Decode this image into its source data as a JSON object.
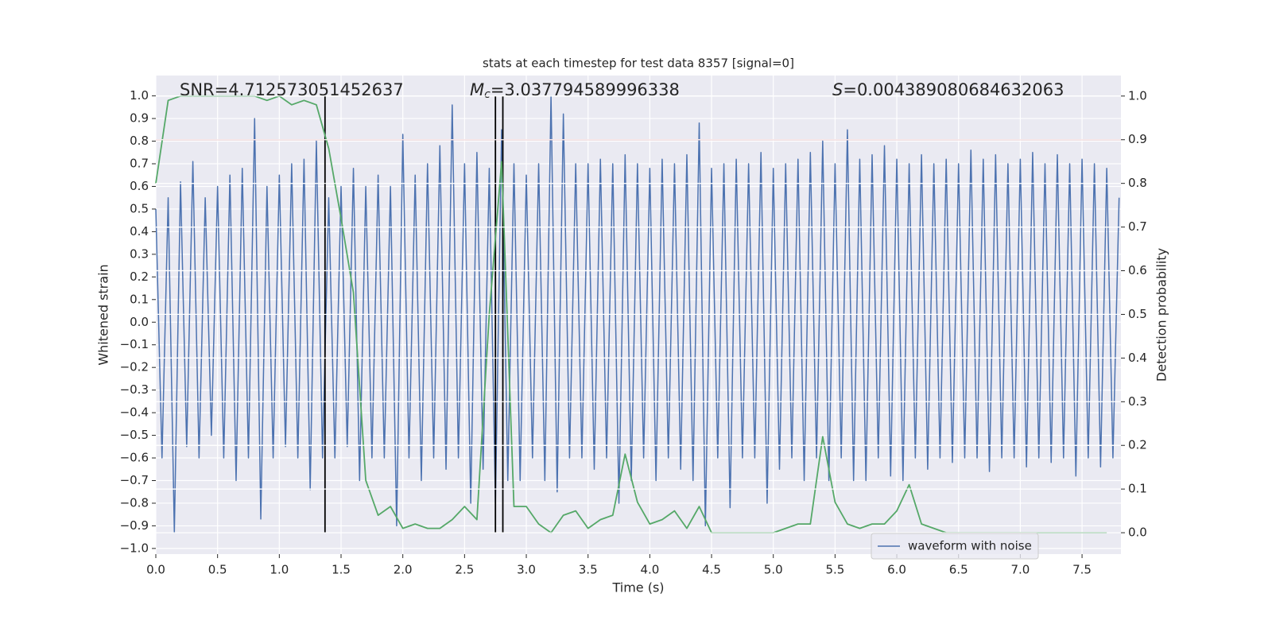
{
  "chart_data": {
    "type": "line",
    "title": "stats at each timestep for test data 8357 [signal=0]",
    "xlabel": "Time (s)",
    "ylabel": "Whitened strain",
    "y2label": "Detection probability",
    "annotations": {
      "snr": "SNR=4.712573051452637",
      "mc": {
        "symbol": "M",
        "subscript": "c",
        "text": "=3.037794589996338"
      },
      "s": {
        "symbol": "S",
        "text": "=0.004389080684632063"
      }
    },
    "xlim": [
      0,
      7.815
    ],
    "ylim": [
      -1.025,
      1.09
    ],
    "y2lim": [
      -0.049,
      1.047
    ],
    "xticks": [
      {
        "value": 0,
        "label": "0.0"
      },
      0.5,
      {
        "value": 1,
        "label": "1.0"
      },
      1.5,
      {
        "value": 2,
        "label": "2.0"
      },
      2.5,
      {
        "value": 3,
        "label": "3.0"
      },
      3.5,
      {
        "value": 4,
        "label": "4.0"
      },
      4.5,
      {
        "value": 5,
        "label": "5.0"
      },
      5.5,
      {
        "value": 6,
        "label": "6.0"
      },
      6.5,
      {
        "value": 7,
        "label": "7.0"
      },
      7.5
    ],
    "yticks": [
      {
        "value": -1,
        "label": "−1.0"
      },
      {
        "value": -0.9,
        "label": "−0.9"
      },
      {
        "value": -0.8,
        "label": "−0.8"
      },
      {
        "value": -0.7,
        "label": "−0.7"
      },
      {
        "value": -0.6,
        "label": "−0.6"
      },
      {
        "value": -0.5,
        "label": "−0.5"
      },
      {
        "value": -0.4,
        "label": "−0.4"
      },
      {
        "value": -0.3,
        "label": "−0.3"
      },
      {
        "value": -0.2,
        "label": "−0.2"
      },
      {
        "value": -0.1,
        "label": "−0.1"
      },
      {
        "value": 0,
        "label": "0.0"
      },
      0.1,
      0.2,
      0.3,
      0.4,
      0.5,
      0.6,
      0.7,
      0.8,
      0.9,
      {
        "value": 1,
        "label": "1.0"
      }
    ],
    "y2ticks": [
      {
        "value": 0,
        "label": "0.0"
      },
      0.1,
      0.2,
      0.3,
      0.4,
      0.5,
      0.6,
      0.7,
      0.8,
      0.9,
      {
        "value": 1,
        "label": "1.0"
      }
    ],
    "grid": true,
    "legend": "lower right",
    "x": [
      0,
      0.05,
      0.1,
      0.15,
      0.2,
      0.25,
      0.3,
      0.35,
      0.4,
      0.45,
      0.5,
      0.55,
      0.6,
      0.65,
      0.7,
      0.75,
      0.8,
      0.85,
      0.9,
      0.95,
      1,
      1.05,
      1.1,
      1.15,
      1.2,
      1.25,
      1.3,
      1.35,
      1.4,
      1.45,
      1.5,
      1.55,
      1.6,
      1.65,
      1.7,
      1.75,
      1.8,
      1.85,
      1.9,
      1.95,
      2,
      2.05,
      2.1,
      2.15,
      2.2,
      2.25,
      2.3,
      2.35,
      2.4,
      2.45,
      2.5,
      2.55,
      2.6,
      2.65,
      2.7,
      2.75,
      2.8,
      2.85,
      2.9,
      2.95,
      3,
      3.05,
      3.1,
      3.15,
      3.2,
      3.25,
      3.3,
      3.35,
      3.4,
      3.45,
      3.5,
      3.55,
      3.6,
      3.65,
      3.7,
      3.75,
      3.8,
      3.85,
      3.9,
      3.95,
      4,
      4.05,
      4.1,
      4.15,
      4.2,
      4.25,
      4.3,
      4.35,
      4.4,
      4.45,
      4.5,
      4.55,
      4.6,
      4.65,
      4.7,
      4.75,
      4.8,
      4.85,
      4.9,
      4.95,
      5,
      5.05,
      5.1,
      5.15,
      5.2,
      5.25,
      5.3,
      5.35,
      5.4,
      5.45,
      5.5,
      5.55,
      5.6,
      5.65,
      5.7,
      5.75,
      5.8,
      5.85,
      5.9,
      5.95,
      6,
      6.05,
      6.1,
      6.15,
      6.2,
      6.25,
      6.3,
      6.35,
      6.4,
      6.45,
      6.5,
      6.55,
      6.6,
      6.65,
      6.7,
      6.75,
      6.8,
      6.85,
      6.9,
      6.95,
      7,
      7.05,
      7.1,
      7.15,
      7.2,
      7.25,
      7.3,
      7.35,
      7.4,
      7.45,
      7.5,
      7.55,
      7.6,
      7.65,
      7.7,
      7.75,
      7.8
    ],
    "series": [
      {
        "name": "waveform with noise",
        "color": "#4c72b0",
        "values": [
          0.5,
          -0.6,
          0.55,
          -0.93,
          0.62,
          -0.55,
          0.71,
          -0.6,
          0.55,
          -0.5,
          0.6,
          -0.6,
          0.65,
          -0.7,
          0.68,
          -0.6,
          0.9,
          -0.87,
          0.6,
          -0.6,
          0.65,
          -0.55,
          0.7,
          -0.6,
          0.72,
          -0.74,
          0.8,
          -0.6,
          0.55,
          -0.6,
          0.6,
          -0.55,
          0.68,
          -0.7,
          0.6,
          -0.6,
          0.65,
          -0.6,
          0.6,
          -0.9,
          0.83,
          -0.6,
          0.65,
          -0.7,
          0.7,
          -0.6,
          0.78,
          -0.65,
          0.96,
          -0.6,
          0.7,
          -0.8,
          0.75,
          -0.65,
          0.68,
          -0.8,
          0.85,
          -0.7,
          0.7,
          -0.7,
          0.65,
          -0.6,
          0.7,
          -0.7,
          1.0,
          -0.75,
          0.92,
          -0.6,
          0.7,
          -0.6,
          0.7,
          -0.65,
          0.72,
          -0.6,
          0.7,
          -0.8,
          0.74,
          -0.7,
          0.7,
          -0.6,
          0.68,
          -0.7,
          0.72,
          -0.6,
          0.7,
          -0.65,
          0.74,
          -0.7,
          0.88,
          -0.9,
          0.68,
          -0.6,
          0.7,
          -0.82,
          0.72,
          -0.6,
          0.7,
          -0.6,
          0.75,
          -0.8,
          0.68,
          -0.65,
          0.7,
          -0.6,
          0.72,
          -0.7,
          0.75,
          -0.6,
          0.8,
          -0.7,
          0.7,
          -0.6,
          0.85,
          -0.7,
          0.72,
          -0.7,
          0.74,
          -0.6,
          0.78,
          -0.68,
          0.72,
          -0.7,
          0.7,
          -0.6,
          0.74,
          -0.65,
          0.7,
          -0.6,
          0.72,
          -0.62,
          0.7,
          -0.6,
          0.76,
          -0.6,
          0.72,
          -0.66,
          0.74,
          -0.6,
          0.7,
          -0.6,
          0.72,
          -0.64,
          0.75,
          -0.6,
          0.7,
          -0.62,
          0.74,
          -0.6,
          0.7,
          -0.68,
          0.72,
          -0.6,
          0.7,
          -0.64,
          0.68,
          -0.6,
          0.55
        ]
      },
      {
        "color": "#55a868",
        "axis": "y2",
        "x": [
          0,
          0.1,
          0.2,
          0.3,
          0.4,
          0.5,
          0.6,
          0.7,
          0.8,
          0.9,
          1,
          1.1,
          1.2,
          1.3,
          1.4,
          1.5,
          1.6,
          1.7,
          1.8,
          1.9,
          2,
          2.1,
          2.2,
          2.3,
          2.4,
          2.5,
          2.6,
          2.7,
          2.8,
          2.9,
          3,
          3.1,
          3.2,
          3.3,
          3.4,
          3.5,
          3.6,
          3.7,
          3.8,
          3.9,
          4,
          4.1,
          4.2,
          4.3,
          4.4,
          4.5,
          4.6,
          4.7,
          4.8,
          4.9,
          5,
          5.1,
          5.2,
          5.3,
          5.4,
          5.5,
          5.6,
          5.7,
          5.8,
          5.9,
          6,
          6.1,
          6.2,
          6.3,
          6.4,
          6.5,
          6.6,
          6.7,
          6.8,
          6.9,
          7,
          7.1,
          7.2,
          7.3,
          7.4,
          7.5,
          7.6,
          7.7
        ],
        "values": [
          0.8,
          0.99,
          1.0,
          1.0,
          1.0,
          1.0,
          1.0,
          1.0,
          1.0,
          0.99,
          1.0,
          0.98,
          0.99,
          0.98,
          0.88,
          0.72,
          0.55,
          0.12,
          0.04,
          0.06,
          0.01,
          0.02,
          0.01,
          0.01,
          0.03,
          0.06,
          0.03,
          0.5,
          0.85,
          0.06,
          0.06,
          0.02,
          0.0,
          0.04,
          0.05,
          0.01,
          0.03,
          0.04,
          0.18,
          0.07,
          0.02,
          0.03,
          0.05,
          0.01,
          0.06,
          0.0,
          0.0,
          0.0,
          0.0,
          0.0,
          0.0,
          0.01,
          0.02,
          0.02,
          0.22,
          0.07,
          0.02,
          0.01,
          0.02,
          0.02,
          0.05,
          0.11,
          0.02,
          0.01,
          0.0,
          0.0,
          0.0,
          0.0,
          0.0,
          0.0,
          0.0,
          0.0,
          0.0,
          0.0,
          0.0,
          0.0,
          0.0,
          0.0
        ]
      }
    ],
    "hlines": [
      {
        "value": 0.9,
        "axis": "y2",
        "color": "#c44e52"
      }
    ],
    "vlines": {
      "values": [
        1.37,
        2.75,
        2.81
      ],
      "span": [
        -0.93,
        1.0
      ],
      "color": "#000000"
    }
  }
}
